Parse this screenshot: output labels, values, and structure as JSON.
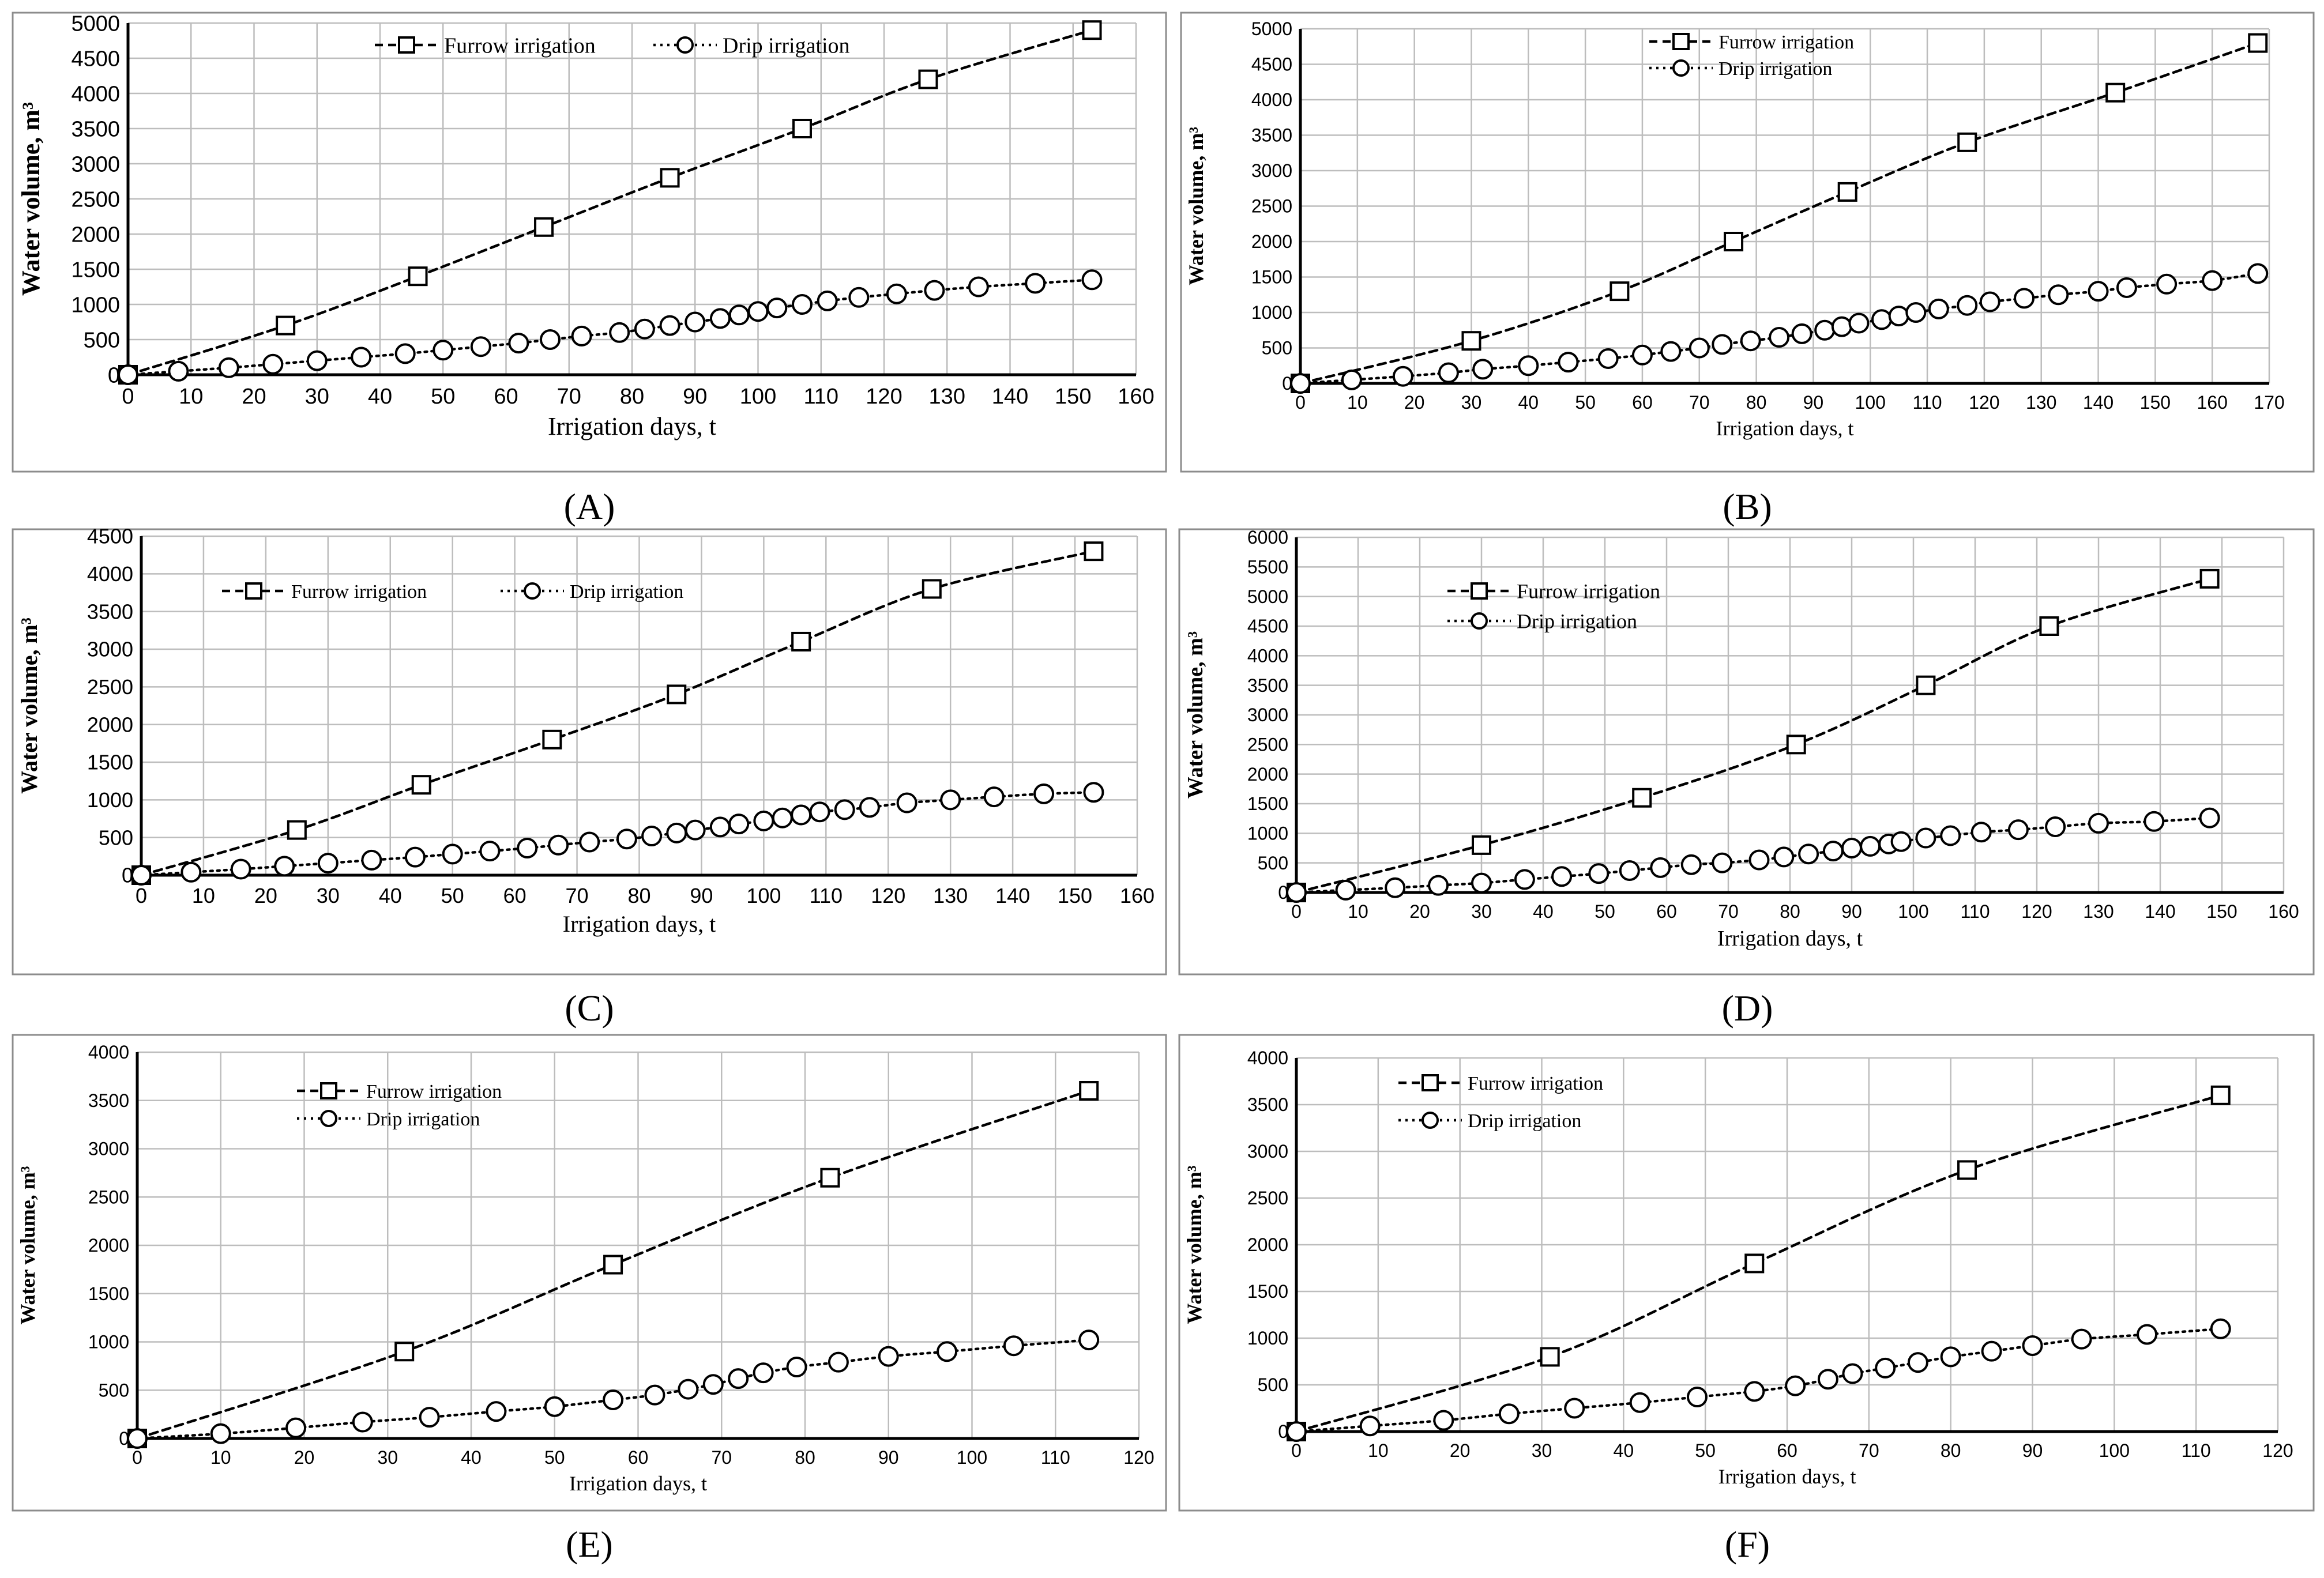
{
  "figure": {
    "panels": [
      "(A)",
      "(B)",
      "(C)",
      "(D)",
      "(E)",
      "(F)"
    ]
  },
  "chart_data": [
    {
      "panel": "A",
      "caption_letter": "A",
      "type": "line",
      "xlabel": "Irrigation days, t",
      "ylabel": "Water volume, m³",
      "xlim": [
        0,
        160
      ],
      "ylim": [
        0,
        5000
      ],
      "xticks": [
        0,
        10,
        20,
        30,
        40,
        50,
        60,
        70,
        80,
        90,
        100,
        110,
        120,
        130,
        140,
        150,
        160
      ],
      "yticks": [
        0,
        500,
        1000,
        1500,
        2000,
        2500,
        3000,
        3500,
        4000,
        4500,
        5000
      ],
      "grid": true,
      "legend_placement": "top-center-horizontal",
      "series": [
        {
          "name": "Furrow irrigation",
          "marker": "square",
          "dash": "dashed",
          "x": [
            0,
            25,
            46,
            66,
            86,
            107,
            127,
            153
          ],
          "y": [
            0,
            700,
            1400,
            2100,
            2800,
            3500,
            4200,
            4900
          ]
        },
        {
          "name": "Drip irrigation",
          "marker": "circle",
          "dash": "dotted",
          "x": [
            0,
            8,
            16,
            23,
            30,
            37,
            44,
            50,
            56,
            62,
            67,
            72,
            78,
            82,
            86,
            90,
            94,
            97,
            100,
            103,
            107,
            111,
            116,
            122,
            128,
            135,
            144,
            153
          ],
          "y": [
            0,
            50,
            100,
            150,
            200,
            250,
            300,
            350,
            400,
            450,
            500,
            550,
            600,
            650,
            700,
            750,
            800,
            850,
            900,
            950,
            1000,
            1050,
            1100,
            1150,
            1200,
            1250,
            1300,
            1350
          ]
        }
      ]
    },
    {
      "panel": "B",
      "caption_letter": "B",
      "type": "line",
      "xlabel": "Irrigation days, t",
      "ylabel": "Water volume, m³",
      "xlim": [
        0,
        170
      ],
      "ylim": [
        0,
        5000
      ],
      "xticks": [
        0,
        10,
        20,
        30,
        40,
        50,
        60,
        70,
        80,
        90,
        100,
        110,
        120,
        130,
        140,
        150,
        160,
        170
      ],
      "yticks": [
        0,
        500,
        1000,
        1500,
        2000,
        2500,
        3000,
        3500,
        4000,
        4500,
        5000
      ],
      "grid": true,
      "legend_placement": "top-left-stacked",
      "series": [
        {
          "name": "Furrow irrigation",
          "marker": "square",
          "dash": "dashed",
          "x": [
            0,
            30,
            56,
            76,
            96,
            117,
            143,
            168
          ],
          "y": [
            0,
            600,
            1300,
            2000,
            2700,
            3400,
            4100,
            4800
          ]
        },
        {
          "name": "Drip irrigation",
          "marker": "circle",
          "dash": "dotted",
          "x": [
            0,
            9,
            18,
            26,
            32,
            40,
            47,
            54,
            60,
            65,
            70,
            74,
            79,
            84,
            88,
            92,
            95,
            98,
            102,
            105,
            108,
            112,
            117,
            121,
            127,
            133,
            140,
            145,
            152,
            160,
            168
          ],
          "y": [
            0,
            50,
            100,
            150,
            200,
            250,
            300,
            350,
            400,
            450,
            500,
            550,
            600,
            650,
            700,
            750,
            800,
            850,
            900,
            950,
            1000,
            1050,
            1100,
            1150,
            1200,
            1250,
            1300,
            1350,
            1400,
            1450,
            1550
          ]
        }
      ]
    },
    {
      "panel": "C",
      "caption_letter": "C",
      "type": "line",
      "xlabel": "Irrigation days, t",
      "ylabel": "Water volume, m³",
      "xlim": [
        0,
        160
      ],
      "ylim": [
        0,
        4500
      ],
      "xticks": [
        0,
        10,
        20,
        30,
        40,
        50,
        60,
        70,
        80,
        90,
        100,
        110,
        120,
        130,
        140,
        150,
        160
      ],
      "yticks": [
        0,
        500,
        1000,
        1500,
        2000,
        2500,
        3000,
        3500,
        4000,
        4500
      ],
      "grid": true,
      "legend_placement": "top-center-horizontal",
      "series": [
        {
          "name": "Furrow irrigation",
          "marker": "square",
          "dash": "dashed",
          "x": [
            0,
            25,
            45,
            66,
            86,
            106,
            127,
            153
          ],
          "y": [
            0,
            600,
            1200,
            1800,
            2400,
            3100,
            3800,
            4300
          ]
        },
        {
          "name": "Drip irrigation",
          "marker": "circle",
          "dash": "dotted",
          "x": [
            0,
            8,
            16,
            23,
            30,
            37,
            44,
            50,
            56,
            62,
            67,
            72,
            78,
            82,
            86,
            89,
            93,
            96,
            100,
            103,
            106,
            109,
            113,
            117,
            123,
            130,
            137,
            145,
            153
          ],
          "y": [
            0,
            40,
            80,
            120,
            160,
            200,
            240,
            280,
            320,
            360,
            400,
            440,
            480,
            520,
            560,
            600,
            640,
            680,
            720,
            760,
            800,
            840,
            870,
            900,
            960,
            1000,
            1040,
            1080,
            1100
          ]
        }
      ]
    },
    {
      "panel": "D",
      "caption_letter": "D",
      "type": "line",
      "xlabel": "Irrigation days, t",
      "ylabel": "Water volume, m³",
      "xlim": [
        0,
        160
      ],
      "ylim": [
        0,
        6000
      ],
      "xticks": [
        0,
        10,
        20,
        30,
        40,
        50,
        60,
        70,
        80,
        90,
        100,
        110,
        120,
        130,
        140,
        150,
        160
      ],
      "yticks": [
        0,
        500,
        1000,
        1500,
        2000,
        2500,
        3000,
        3500,
        4000,
        4500,
        5000,
        5500,
        6000
      ],
      "grid": true,
      "legend_placement": "top-left-stacked",
      "series": [
        {
          "name": "Furrow irrigation",
          "marker": "square",
          "dash": "dashed",
          "x": [
            0,
            30,
            56,
            81,
            102,
            122,
            148
          ],
          "y": [
            0,
            800,
            1600,
            2500,
            3500,
            4500,
            5300
          ]
        },
        {
          "name": "Drip irrigation",
          "marker": "circle",
          "dash": "dotted",
          "x": [
            0,
            8,
            16,
            23,
            30,
            37,
            43,
            49,
            54,
            59,
            64,
            69,
            75,
            79,
            83,
            87,
            90,
            93,
            96,
            98,
            102,
            106,
            111,
            117,
            123,
            130,
            139,
            148
          ],
          "y": [
            0,
            40,
            80,
            120,
            160,
            220,
            270,
            320,
            370,
            420,
            470,
            500,
            550,
            600,
            650,
            700,
            750,
            780,
            820,
            860,
            920,
            960,
            1020,
            1060,
            1110,
            1170,
            1200,
            1260
          ]
        }
      ]
    },
    {
      "panel": "E",
      "caption_letter": "E",
      "type": "line",
      "xlabel": "Irrigation days, t",
      "ylabel": "Water volume, m³",
      "xlim": [
        0,
        120
      ],
      "ylim": [
        0,
        4000
      ],
      "xticks": [
        0,
        10,
        20,
        30,
        40,
        50,
        60,
        70,
        80,
        90,
        100,
        110,
        120
      ],
      "yticks": [
        0,
        500,
        1000,
        1500,
        2000,
        2500,
        3000,
        3500,
        4000
      ],
      "grid": true,
      "legend_placement": "top-left-stacked",
      "series": [
        {
          "name": "Furrow irrigation",
          "marker": "square",
          "dash": "dashed",
          "x": [
            0,
            32,
            57,
            83,
            114
          ],
          "y": [
            0,
            900,
            1800,
            2700,
            3600
          ]
        },
        {
          "name": "Drip irrigation",
          "marker": "circle",
          "dash": "dotted",
          "x": [
            0,
            10,
            19,
            27,
            35,
            43,
            50,
            57,
            62,
            66,
            69,
            72,
            75,
            79,
            84,
            90,
            97,
            105,
            114
          ],
          "y": [
            0,
            50,
            110,
            170,
            220,
            280,
            330,
            400,
            450,
            510,
            560,
            620,
            680,
            740,
            790,
            850,
            900,
            960,
            1020
          ]
        }
      ]
    },
    {
      "panel": "F",
      "caption_letter": "F",
      "type": "line",
      "xlabel": "Irrigation days, t",
      "ylabel": "Water volume, m³",
      "xlim": [
        0,
        120
      ],
      "ylim": [
        0,
        4000
      ],
      "xticks": [
        0,
        10,
        20,
        30,
        40,
        50,
        60,
        70,
        80,
        90,
        100,
        110,
        120
      ],
      "yticks": [
        0,
        500,
        1000,
        1500,
        2000,
        2500,
        3000,
        3500,
        4000
      ],
      "grid": true,
      "legend_placement": "top-left-stacked",
      "series": [
        {
          "name": "Furrow irrigation",
          "marker": "square",
          "dash": "dashed",
          "x": [
            0,
            31,
            56,
            82,
            113
          ],
          "y": [
            0,
            800,
            1800,
            2800,
            3600
          ]
        },
        {
          "name": "Drip irrigation",
          "marker": "circle",
          "dash": "dotted",
          "x": [
            0,
            9,
            18,
            26,
            34,
            42,
            49,
            56,
            61,
            65,
            68,
            72,
            76,
            80,
            85,
            90,
            96,
            104,
            113
          ],
          "y": [
            0,
            60,
            120,
            190,
            250,
            310,
            370,
            430,
            490,
            560,
            620,
            680,
            740,
            800,
            860,
            920,
            990,
            1040,
            1100
          ]
        }
      ]
    }
  ]
}
